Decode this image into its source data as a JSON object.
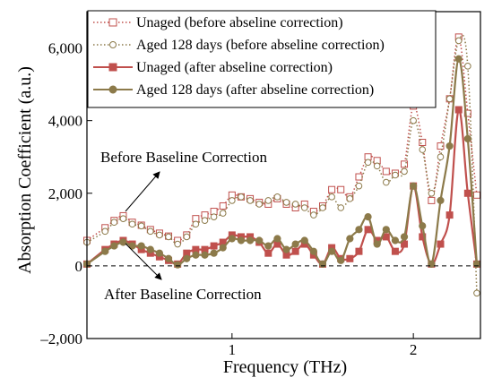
{
  "chart_data": {
    "type": "line",
    "xlabel": "Frequency (THz)",
    "ylabel": "Absorption Coefficient (a.u.)",
    "xlim": [
      0.2,
      2.37
    ],
    "ylim": [
      -2000,
      7000
    ],
    "xticks": [
      1,
      2
    ],
    "xtick_labels": [
      "1",
      "2"
    ],
    "yticks": [
      -2000,
      0,
      2000,
      4000,
      6000
    ],
    "ytick_labels": [
      "–2,000",
      "0",
      "2,000",
      "4,000",
      "6,000"
    ],
    "zero_line": true,
    "grid": false,
    "legend_position": "top-right",
    "x": [
      0.2,
      0.3,
      0.35,
      0.4,
      0.45,
      0.5,
      0.55,
      0.6,
      0.65,
      0.7,
      0.75,
      0.8,
      0.85,
      0.9,
      0.95,
      1.0,
      1.05,
      1.1,
      1.15,
      1.2,
      1.25,
      1.3,
      1.35,
      1.4,
      1.45,
      1.5,
      1.55,
      1.6,
      1.65,
      1.7,
      1.75,
      1.8,
      1.85,
      1.9,
      1.95,
      2.0,
      2.05,
      2.1,
      2.15,
      2.2,
      2.25,
      2.3,
      2.35
    ],
    "series": [
      {
        "name": "Unaged (before abseline correction)",
        "color": "#c0504d",
        "style": "dotted",
        "marker": "open-square",
        "values": [
          700,
          1050,
          1250,
          1380,
          1200,
          1120,
          1000,
          900,
          820,
          700,
          850,
          1300,
          1400,
          1500,
          1650,
          1950,
          1900,
          1850,
          1750,
          1700,
          1850,
          1700,
          1600,
          1700,
          1500,
          1650,
          2100,
          2100,
          1900,
          2450,
          3000,
          2900,
          2600,
          2550,
          2800,
          4400,
          3400,
          1800,
          3300,
          4600,
          6300,
          4200,
          1950
        ]
      },
      {
        "name": "Aged 128 days (before abseline correction)",
        "color": "#8c7a4a",
        "style": "dotted",
        "marker": "open-circle",
        "values": [
          650,
          950,
          1200,
          1300,
          1150,
          1100,
          950,
          850,
          800,
          600,
          800,
          1150,
          1250,
          1350,
          1450,
          1800,
          1900,
          1800,
          1700,
          1800,
          1900,
          1750,
          1700,
          1600,
          1400,
          1600,
          1900,
          1600,
          1850,
          2200,
          2850,
          2750,
          2300,
          2500,
          2600,
          4000,
          3200,
          2000,
          3000,
          4600,
          6200,
          5500,
          -750
        ]
      },
      {
        "name": "Unaged (after abseline correction)",
        "color": "#c0504d",
        "style": "solid",
        "marker": "filled-square",
        "values": [
          50,
          450,
          600,
          700,
          600,
          450,
          350,
          250,
          150,
          50,
          350,
          450,
          450,
          550,
          650,
          850,
          800,
          800,
          650,
          350,
          600,
          300,
          400,
          600,
          300,
          50,
          500,
          200,
          200,
          400,
          1000,
          700,
          800,
          400,
          600,
          2200,
          800,
          50,
          600,
          1400,
          4300,
          2000,
          50
        ]
      },
      {
        "name": "Aged 128 days (after abseline correction)",
        "color": "#8c7a4a",
        "style": "solid",
        "marker": "filled-circle",
        "values": [
          50,
          400,
          550,
          650,
          550,
          550,
          450,
          350,
          200,
          30,
          200,
          300,
          300,
          350,
          500,
          750,
          700,
          700,
          700,
          550,
          750,
          450,
          600,
          700,
          400,
          50,
          400,
          150,
          750,
          1000,
          1350,
          600,
          1000,
          700,
          800,
          2200,
          1100,
          50,
          1800,
          3300,
          5700,
          3500,
          50
        ]
      }
    ],
    "annotations": [
      {
        "text": "Before Baseline Correction",
        "points_to_x": 0.58,
        "points_to_y": 2550
      },
      {
        "text": "After Baseline Correction",
        "points_to_x": 0.58,
        "points_to_y": -950
      }
    ]
  }
}
